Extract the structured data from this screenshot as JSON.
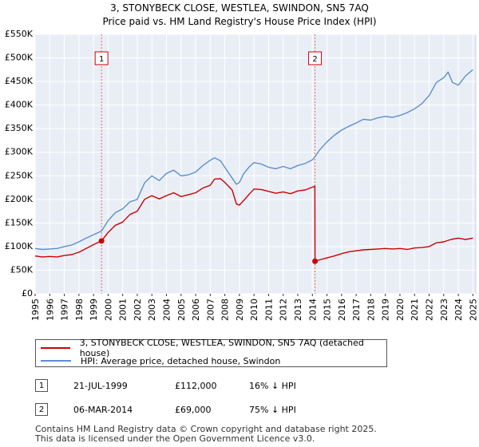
{
  "header": {
    "title_line1": "3, STONYBECK CLOSE, WESTLEA, SWINDON, SN5 7AQ",
    "title_line2": "Price paid vs. HM Land Registry's House Price Index (HPI)"
  },
  "chart_data": {
    "type": "line",
    "title": "3, STONYBECK CLOSE, WESTLEA, SWINDON, SN5 7AQ — Price paid vs. HM Land Registry's House Price Index (HPI)",
    "xlabel": "",
    "ylabel": "",
    "xlim": [
      1995,
      2025.2
    ],
    "ylim": [
      0,
      550000
    ],
    "grid": true,
    "y_ticks": [
      {
        "value": 0,
        "label": "£0"
      },
      {
        "value": 50000,
        "label": "£50K"
      },
      {
        "value": 100000,
        "label": "£100K"
      },
      {
        "value": 150000,
        "label": "£150K"
      },
      {
        "value": 200000,
        "label": "£200K"
      },
      {
        "value": 250000,
        "label": "£250K"
      },
      {
        "value": 300000,
        "label": "£300K"
      },
      {
        "value": 350000,
        "label": "£350K"
      },
      {
        "value": 400000,
        "label": "£400K"
      },
      {
        "value": 450000,
        "label": "£450K"
      },
      {
        "value": 500000,
        "label": "£500K"
      },
      {
        "value": 550000,
        "label": "£550K"
      }
    ],
    "x_ticks": [
      "1995",
      "1996",
      "1997",
      "1998",
      "1999",
      "2000",
      "2001",
      "2002",
      "2003",
      "2004",
      "2005",
      "2006",
      "2007",
      "2008",
      "2009",
      "2010",
      "2011",
      "2012",
      "2013",
      "2014",
      "2015",
      "2016",
      "2017",
      "2018",
      "2019",
      "2020",
      "2021",
      "2022",
      "2023",
      "2024",
      "2025"
    ],
    "series": [
      {
        "name": "3, STONYBECK CLOSE, WESTLEA, SWINDON, SN5 7AQ (detached house)",
        "color": "#cc0000",
        "x": [
          1995.0,
          1995.5,
          1996.0,
          1996.5,
          1997.0,
          1997.5,
          1998.0,
          1998.5,
          1999.0,
          1999.55,
          2000.0,
          2000.5,
          2001.0,
          2001.5,
          2002.0,
          2002.5,
          2003.0,
          2003.5,
          2004.0,
          2004.5,
          2005.0,
          2005.5,
          2006.0,
          2006.5,
          2007.0,
          2007.3,
          2007.7,
          2008.0,
          2008.5,
          2008.8,
          2009.0,
          2009.3,
          2009.7,
          2010.0,
          2010.5,
          2011.0,
          2011.5,
          2012.0,
          2012.5,
          2013.0,
          2013.5,
          2014.0,
          2014.17,
          2014.18,
          2014.5,
          2015.0,
          2015.5,
          2016.0,
          2016.5,
          2017.0,
          2017.5,
          2018.0,
          2018.5,
          2019.0,
          2019.5,
          2020.0,
          2020.5,
          2021.0,
          2021.5,
          2022.0,
          2022.5,
          2023.0,
          2023.5,
          2024.0,
          2024.5,
          2025.0
        ],
        "values": [
          80000,
          78000,
          79000,
          78000,
          81000,
          83000,
          88000,
          96000,
          104000,
          112000,
          130000,
          145000,
          152000,
          168000,
          175000,
          200000,
          208000,
          201000,
          208000,
          214000,
          206000,
          210000,
          214000,
          224000,
          230000,
          243000,
          244000,
          236000,
          220000,
          190000,
          188000,
          198000,
          212000,
          222000,
          221000,
          217000,
          213000,
          216000,
          212000,
          218000,
          220000,
          226000,
          228000,
          69000,
          72000,
          76000,
          80000,
          85000,
          89000,
          91000,
          93000,
          94000,
          95000,
          96000,
          95000,
          96000,
          94000,
          97000,
          98000,
          100000,
          108000,
          110000,
          115000,
          118000,
          115000,
          118000
        ]
      },
      {
        "name": "HPI: Average price, detached house, Swindon",
        "color": "#5b8fce",
        "x": [
          1995.0,
          1995.5,
          1996.0,
          1996.5,
          1997.0,
          1997.5,
          1998.0,
          1998.5,
          1999.0,
          1999.55,
          2000.0,
          2000.5,
          2001.0,
          2001.5,
          2002.0,
          2002.5,
          2003.0,
          2003.5,
          2004.0,
          2004.5,
          2005.0,
          2005.5,
          2006.0,
          2006.5,
          2007.0,
          2007.3,
          2007.7,
          2008.0,
          2008.5,
          2008.8,
          2009.0,
          2009.3,
          2009.7,
          2010.0,
          2010.5,
          2011.0,
          2011.5,
          2012.0,
          2012.5,
          2013.0,
          2013.5,
          2014.0,
          2014.17,
          2014.5,
          2015.0,
          2015.5,
          2016.0,
          2016.5,
          2017.0,
          2017.5,
          2018.0,
          2018.5,
          2019.0,
          2019.5,
          2020.0,
          2020.5,
          2021.0,
          2021.5,
          2022.0,
          2022.5,
          2023.0,
          2023.3,
          2023.6,
          2024.0,
          2024.5,
          2025.0
        ],
        "values": [
          96000,
          94000,
          95000,
          96000,
          100000,
          103000,
          110000,
          118000,
          125000,
          133000,
          155000,
          172000,
          180000,
          195000,
          200000,
          235000,
          250000,
          240000,
          255000,
          262000,
          250000,
          252000,
          258000,
          272000,
          283000,
          288000,
          282000,
          268000,
          245000,
          232000,
          236000,
          255000,
          270000,
          278000,
          275000,
          268000,
          265000,
          270000,
          265000,
          272000,
          276000,
          284000,
          290000,
          305000,
          322000,
          336000,
          347000,
          355000,
          362000,
          370000,
          368000,
          373000,
          376000,
          374000,
          378000,
          384000,
          392000,
          403000,
          420000,
          448000,
          458000,
          470000,
          448000,
          442000,
          462000,
          475000
        ]
      }
    ],
    "annotations": [
      {
        "label": "1",
        "x": 1999.55,
        "value": 112000
      },
      {
        "label": "2",
        "x": 2014.18,
        "value": 69000
      }
    ]
  },
  "legend": {
    "items": [
      {
        "label": "3, STONYBECK CLOSE, WESTLEA, SWINDON, SN5 7AQ (detached house)",
        "color": "#cc0000"
      },
      {
        "label": "HPI: Average price, detached house, Swindon",
        "color": "#5b8fce"
      }
    ]
  },
  "transactions": [
    {
      "num": "1",
      "date": "21-JUL-1999",
      "price": "£112,000",
      "hpi": "16% ↓ HPI"
    },
    {
      "num": "2",
      "date": "06-MAR-2014",
      "price": "£69,000",
      "hpi": "75% ↓ HPI"
    }
  ],
  "footer": {
    "line1": "Contains HM Land Registry data © Crown copyright and database right 2025.",
    "line2": "This data is licensed under the Open Government Licence v3.0."
  }
}
